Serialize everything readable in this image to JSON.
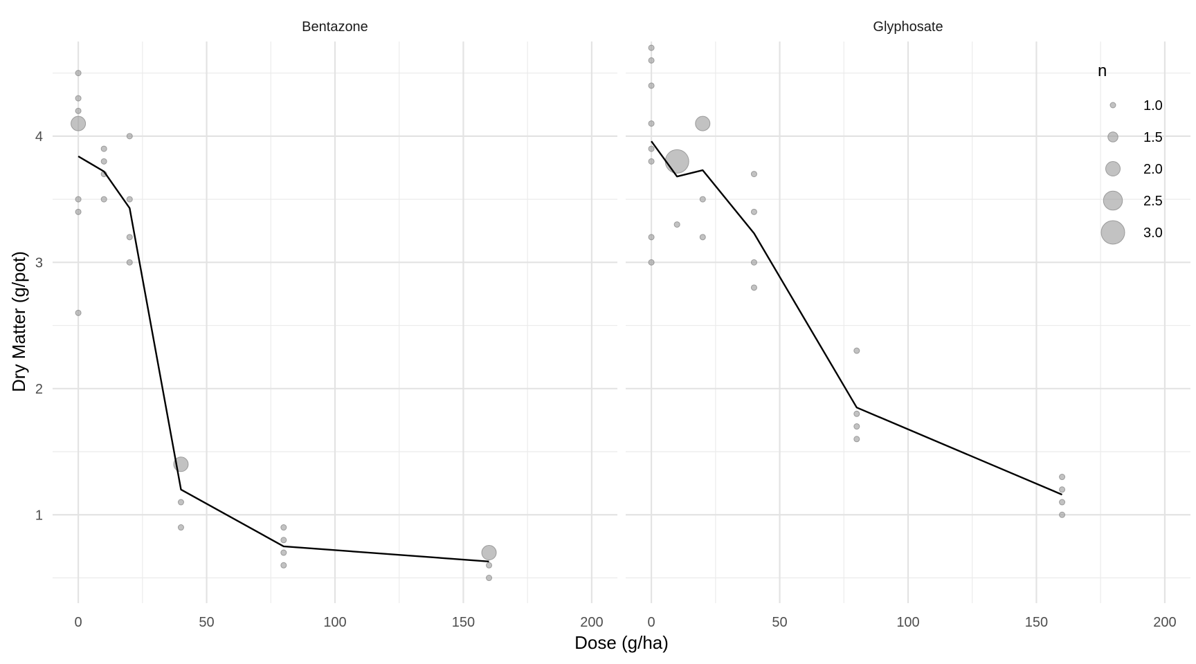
{
  "chart_data": {
    "type": "scatter",
    "xlabel": "Dose (g/ha)",
    "ylabel": "Dry Matter (g/pot)",
    "xlim": [
      -10,
      210
    ],
    "ylim": [
      0.3,
      4.75
    ],
    "x_ticks": [
      0,
      50,
      100,
      150,
      200
    ],
    "y_ticks": [
      1,
      2,
      3,
      4
    ],
    "grid": true,
    "point_color": "#999999",
    "line_color": "#000000",
    "legend": {
      "title": "n",
      "position": "top-right",
      "entries": [
        {
          "label": "1.0",
          "value": 1.0
        },
        {
          "label": "1.5",
          "value": 1.5
        },
        {
          "label": "2.0",
          "value": 2.0
        },
        {
          "label": "2.5",
          "value": 2.5
        },
        {
          "label": "3.0",
          "value": 3.0
        }
      ]
    },
    "panels": [
      {
        "name": "Bentazone",
        "points": [
          {
            "x": 0,
            "y": 4.5,
            "n": 1
          },
          {
            "x": 0,
            "y": 4.3,
            "n": 1
          },
          {
            "x": 0,
            "y": 4.2,
            "n": 1
          },
          {
            "x": 0,
            "y": 4.1,
            "n": 2
          },
          {
            "x": 0,
            "y": 3.5,
            "n": 1
          },
          {
            "x": 0,
            "y": 3.4,
            "n": 1
          },
          {
            "x": 0,
            "y": 2.6,
            "n": 1
          },
          {
            "x": 10,
            "y": 3.9,
            "n": 1
          },
          {
            "x": 10,
            "y": 3.8,
            "n": 1
          },
          {
            "x": 10,
            "y": 3.7,
            "n": 1
          },
          {
            "x": 10,
            "y": 3.5,
            "n": 1
          },
          {
            "x": 20,
            "y": 4.0,
            "n": 1
          },
          {
            "x": 20,
            "y": 3.5,
            "n": 1
          },
          {
            "x": 20,
            "y": 3.2,
            "n": 1
          },
          {
            "x": 20,
            "y": 3.0,
            "n": 1
          },
          {
            "x": 40,
            "y": 1.4,
            "n": 2
          },
          {
            "x": 40,
            "y": 1.1,
            "n": 1
          },
          {
            "x": 40,
            "y": 0.9,
            "n": 1
          },
          {
            "x": 80,
            "y": 0.9,
            "n": 1
          },
          {
            "x": 80,
            "y": 0.8,
            "n": 1
          },
          {
            "x": 80,
            "y": 0.7,
            "n": 1
          },
          {
            "x": 80,
            "y": 0.6,
            "n": 1
          },
          {
            "x": 160,
            "y": 0.7,
            "n": 2
          },
          {
            "x": 160,
            "y": 0.6,
            "n": 1
          },
          {
            "x": 160,
            "y": 0.5,
            "n": 1
          }
        ],
        "line": {
          "x": [
            0,
            10,
            20,
            40,
            80,
            160
          ],
          "y": [
            3.84,
            3.72,
            3.43,
            1.2,
            0.75,
            0.63
          ]
        }
      },
      {
        "name": "Glyphosate",
        "points": [
          {
            "x": 0,
            "y": 4.7,
            "n": 1
          },
          {
            "x": 0,
            "y": 4.6,
            "n": 1
          },
          {
            "x": 0,
            "y": 4.4,
            "n": 1
          },
          {
            "x": 0,
            "y": 4.1,
            "n": 1
          },
          {
            "x": 0,
            "y": 3.9,
            "n": 1
          },
          {
            "x": 0,
            "y": 3.8,
            "n": 1
          },
          {
            "x": 0,
            "y": 3.2,
            "n": 1
          },
          {
            "x": 0,
            "y": 3.0,
            "n": 1
          },
          {
            "x": 10,
            "y": 3.8,
            "n": 3
          },
          {
            "x": 10,
            "y": 3.3,
            "n": 1
          },
          {
            "x": 20,
            "y": 4.1,
            "n": 2
          },
          {
            "x": 20,
            "y": 3.5,
            "n": 1
          },
          {
            "x": 20,
            "y": 3.2,
            "n": 1
          },
          {
            "x": 40,
            "y": 3.7,
            "n": 1
          },
          {
            "x": 40,
            "y": 3.4,
            "n": 1
          },
          {
            "x": 40,
            "y": 3.0,
            "n": 1
          },
          {
            "x": 40,
            "y": 2.8,
            "n": 1
          },
          {
            "x": 80,
            "y": 2.3,
            "n": 1
          },
          {
            "x": 80,
            "y": 1.8,
            "n": 1
          },
          {
            "x": 80,
            "y": 1.7,
            "n": 1
          },
          {
            "x": 80,
            "y": 1.6,
            "n": 1
          },
          {
            "x": 160,
            "y": 1.3,
            "n": 1
          },
          {
            "x": 160,
            "y": 1.2,
            "n": 1
          },
          {
            "x": 160,
            "y": 1.1,
            "n": 1
          },
          {
            "x": 160,
            "y": 1.0,
            "n": 1
          }
        ],
        "line": {
          "x": [
            0,
            10,
            20,
            40,
            80,
            160
          ],
          "y": [
            3.96,
            3.68,
            3.73,
            3.23,
            1.85,
            1.16
          ]
        }
      }
    ]
  }
}
